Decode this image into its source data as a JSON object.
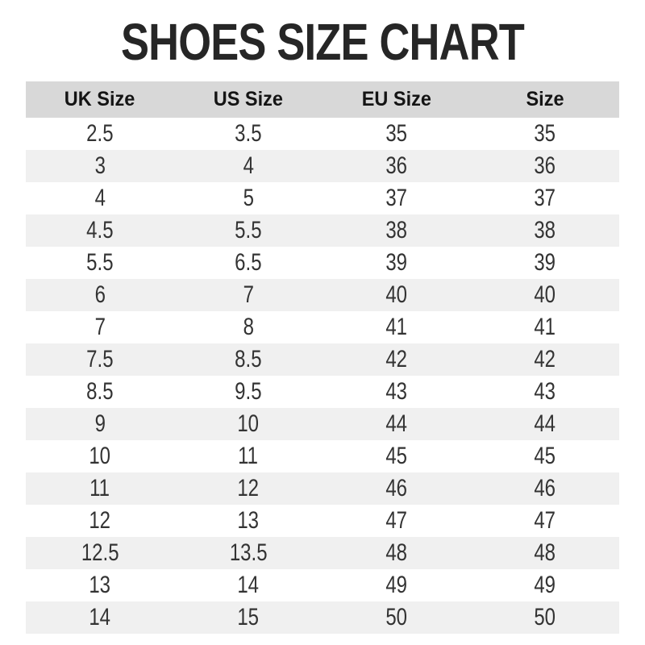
{
  "title": "SHOES SIZE CHART",
  "colors": {
    "background": "#ffffff",
    "title_text": "#262626",
    "header_row_bg": "#d8d8d8",
    "stripe_row_bg": "#f0f0f0",
    "header_text": "#141414",
    "cell_text": "#333333"
  },
  "table": {
    "headers": [
      "UK Size",
      "US Size",
      "EU Size",
      "Size"
    ],
    "rows": [
      [
        "2.5",
        "3.5",
        "35",
        "35"
      ],
      [
        "3",
        "4",
        "36",
        "36"
      ],
      [
        "4",
        "5",
        "37",
        "37"
      ],
      [
        "4.5",
        "5.5",
        "38",
        "38"
      ],
      [
        "5.5",
        "6.5",
        "39",
        "39"
      ],
      [
        "6",
        "7",
        "40",
        "40"
      ],
      [
        "7",
        "8",
        "41",
        "41"
      ],
      [
        "7.5",
        "8.5",
        "42",
        "42"
      ],
      [
        "8.5",
        "9.5",
        "43",
        "43"
      ],
      [
        "9",
        "10",
        "44",
        "44"
      ],
      [
        "10",
        "11",
        "45",
        "45"
      ],
      [
        "11",
        "12",
        "46",
        "46"
      ],
      [
        "12",
        "13",
        "47",
        "47"
      ],
      [
        "12.5",
        "13.5",
        "48",
        "48"
      ],
      [
        "13",
        "14",
        "49",
        "49"
      ],
      [
        "14",
        "15",
        "50",
        "50"
      ]
    ]
  },
  "chart_data": {
    "type": "table",
    "title": "SHOES SIZE CHART",
    "columns": [
      "UK Size",
      "US Size",
      "EU Size",
      "Size"
    ],
    "rows": [
      [
        "2.5",
        "3.5",
        "35",
        "35"
      ],
      [
        "3",
        "4",
        "36",
        "36"
      ],
      [
        "4",
        "5",
        "37",
        "37"
      ],
      [
        "4.5",
        "5.5",
        "38",
        "38"
      ],
      [
        "5.5",
        "6.5",
        "39",
        "39"
      ],
      [
        "6",
        "7",
        "40",
        "40"
      ],
      [
        "7",
        "8",
        "41",
        "41"
      ],
      [
        "7.5",
        "8.5",
        "42",
        "42"
      ],
      [
        "8.5",
        "9.5",
        "43",
        "43"
      ],
      [
        "9",
        "10",
        "44",
        "44"
      ],
      [
        "10",
        "11",
        "45",
        "45"
      ],
      [
        "11",
        "12",
        "46",
        "46"
      ],
      [
        "12",
        "13",
        "47",
        "47"
      ],
      [
        "12.5",
        "13.5",
        "48",
        "48"
      ],
      [
        "13",
        "14",
        "49",
        "49"
      ],
      [
        "14",
        "15",
        "50",
        "50"
      ]
    ],
    "layout_hints": {
      "striped_rows": true,
      "header_background": "#d8d8d8",
      "stripe_background": "#f0f0f0",
      "alignment": "center"
    }
  }
}
